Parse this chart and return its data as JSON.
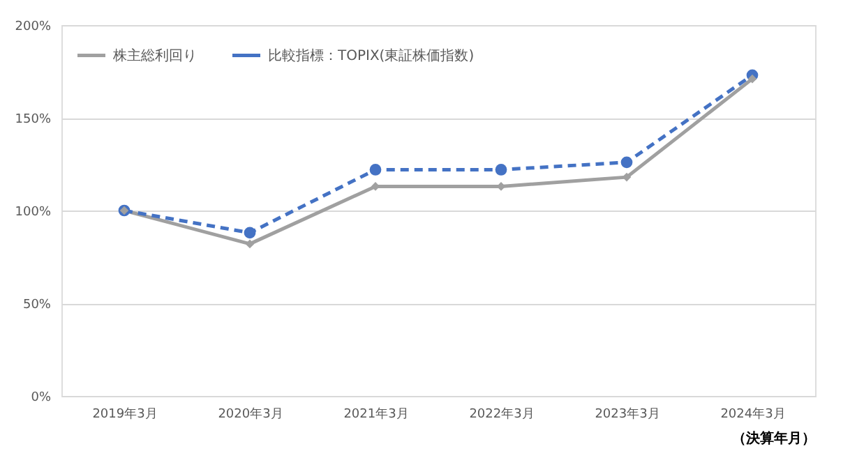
{
  "chart_data": {
    "type": "line",
    "categories": [
      "2019年3月",
      "2020年3月",
      "2021年3月",
      "2022年3月",
      "2023年3月",
      "2024年3月"
    ],
    "xlabel": "（決算年月）",
    "series": [
      {
        "name": "株主総利回り",
        "color": "#a0a0a0",
        "marker": "diamond",
        "line_style": "solid",
        "values": [
          100,
          82,
          113,
          113,
          118,
          171
        ]
      },
      {
        "name": "比較指標：TOPIX(東証株価指数)",
        "color": "#4472c4",
        "marker": "circle",
        "line_style": "dashed",
        "values": [
          100,
          88,
          122,
          122,
          126,
          173
        ]
      }
    ],
    "ylim": [
      0,
      200
    ],
    "yticks": [
      {
        "value": 0,
        "label": "0%"
      },
      {
        "value": 50,
        "label": "50%"
      },
      {
        "value": 100,
        "label": "100%"
      },
      {
        "value": 150,
        "label": "150%"
      },
      {
        "value": 200,
        "label": "200%"
      }
    ],
    "grid": "y",
    "legend": "top left"
  }
}
